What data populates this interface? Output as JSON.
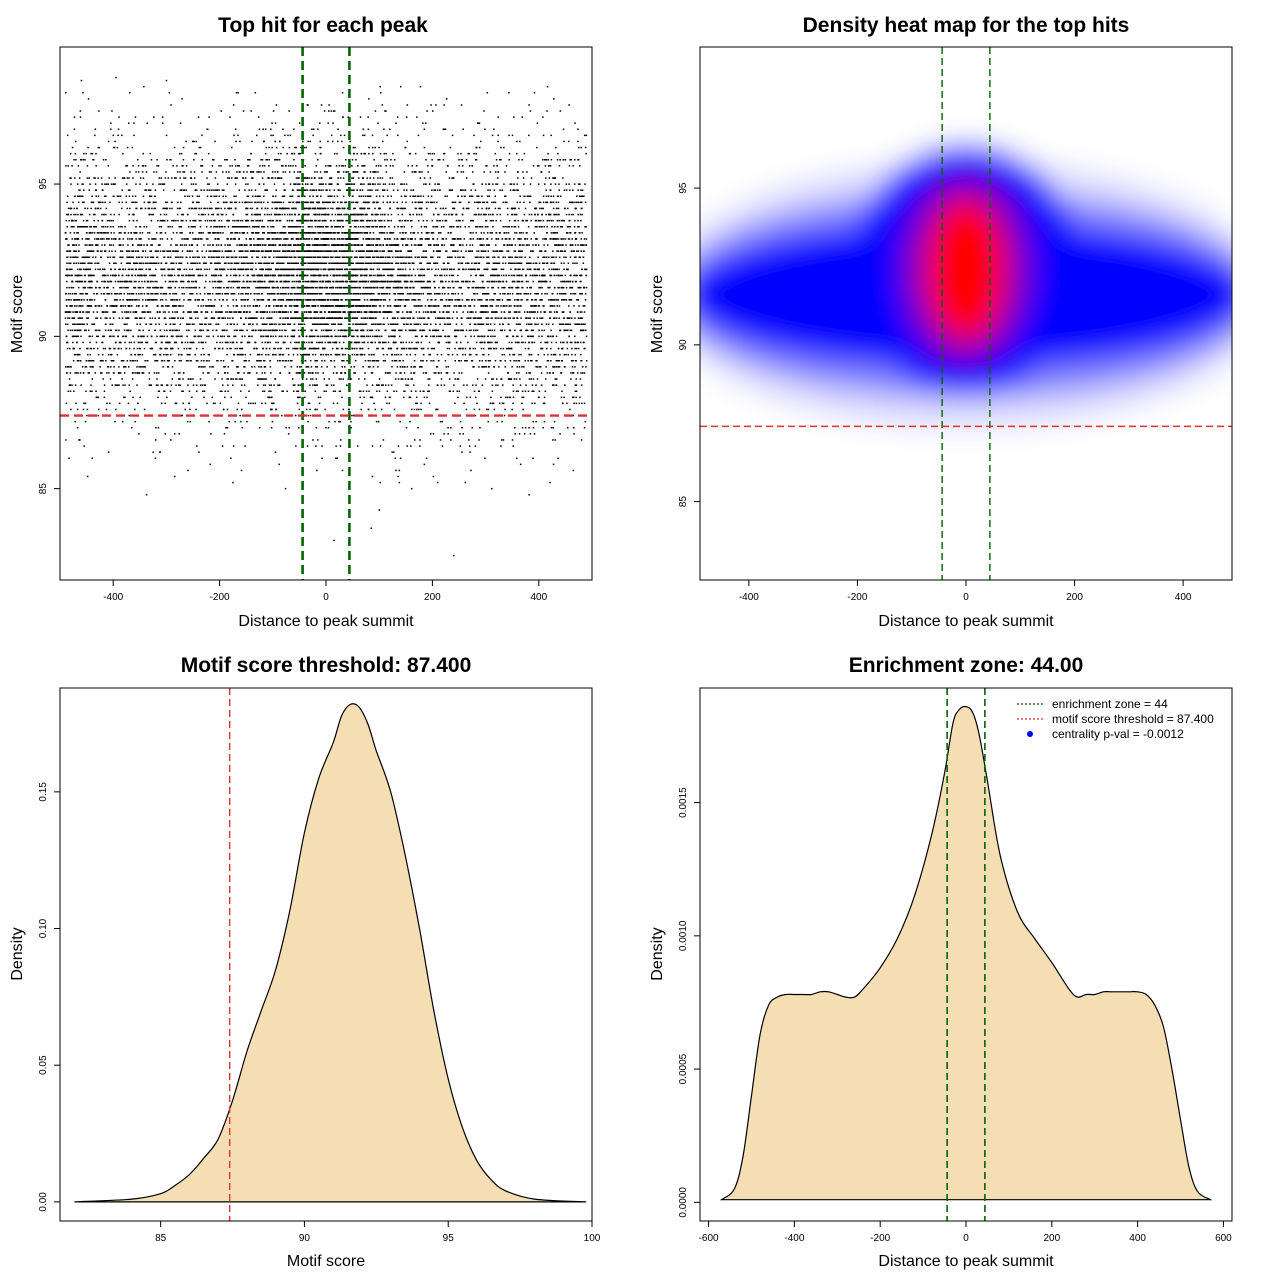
{
  "chart_data": [
    {
      "id": "scatter",
      "type": "scatter",
      "title": "Top hit for each peak",
      "xlabel": "Distance to peak summit",
      "ylabel": "Motif score",
      "xlim": [
        -500,
        500
      ],
      "ylim": [
        82,
        99.5
      ],
      "xticks": [
        -400,
        -200,
        0,
        200,
        400
      ],
      "yticks": [
        85,
        90,
        95
      ],
      "point_color": "#000000",
      "vlines": {
        "values": [
          -44,
          44
        ],
        "color": "#006400",
        "style": "dashed"
      },
      "hline": {
        "value": 87.4,
        "color": "#e03030",
        "style": "dashed"
      },
      "density_summary": {
        "x_range": [
          -490,
          490
        ],
        "y_range": [
          84.5,
          98.5
        ],
        "dense_center": {
          "x": 0,
          "y": 92.3
        },
        "outliers": [
          {
            "x": -395,
            "y": 98.5
          },
          {
            "x": -300,
            "y": 98.4
          },
          {
            "x": 15,
            "y": 83.3
          },
          {
            "x": 85,
            "y": 83.7
          },
          {
            "x": 240,
            "y": 82.8
          },
          {
            "x": 100,
            "y": 84.3
          }
        ]
      }
    },
    {
      "id": "heatmap",
      "type": "heatmap",
      "title": "Density heat map for the top hits",
      "xlabel": "Distance to peak summit",
      "ylabel": "Motif score",
      "xlim": [
        -490,
        490
      ],
      "ylim": [
        82.5,
        99.5
      ],
      "xticks": [
        -400,
        -200,
        0,
        200,
        400
      ],
      "yticks": [
        85,
        90,
        95
      ],
      "colors": {
        "low": "#ffffff",
        "mid": "#0000ff",
        "high": "#ff0000"
      },
      "peak": {
        "x": 0,
        "y": 92.4
      },
      "band_center_y": 91.6,
      "vlines": {
        "values": [
          -44,
          44
        ],
        "color": "#006400",
        "style": "dashed"
      },
      "hline": {
        "value": 87.4,
        "color": "#e03030",
        "style": "dashed"
      }
    },
    {
      "id": "score-density",
      "type": "area",
      "title": "Motif score threshold: 87.400",
      "xlabel": "Motif score",
      "ylabel": "Density",
      "xlim": [
        81.5,
        100
      ],
      "ylim": [
        -0.007,
        0.188
      ],
      "xticks": [
        85,
        90,
        95,
        100
      ],
      "yticks": [
        "0.00",
        "0.05",
        "0.10",
        "0.15"
      ],
      "fill": "#f5deb3",
      "x": [
        82,
        84,
        85,
        85.5,
        86,
        86.5,
        87,
        87.5,
        88,
        88.5,
        89,
        89.5,
        90,
        90.5,
        91,
        91.3,
        91.6,
        91.9,
        92.2,
        92.5,
        93,
        93.5,
        94,
        94.5,
        95,
        95.5,
        96,
        96.5,
        97,
        98,
        99.8
      ],
      "y": [
        0,
        0.001,
        0.003,
        0.006,
        0.01,
        0.016,
        0.023,
        0.037,
        0.055,
        0.07,
        0.085,
        0.107,
        0.135,
        0.155,
        0.168,
        0.178,
        0.182,
        0.181,
        0.175,
        0.165,
        0.15,
        0.127,
        0.1,
        0.07,
        0.045,
        0.027,
        0.015,
        0.008,
        0.004,
        0.001,
        0
      ],
      "vline": {
        "value": 87.4,
        "color": "#e03030",
        "style": "dashed"
      }
    },
    {
      "id": "distance-density",
      "type": "area",
      "title": "Enrichment zone: 44.00",
      "xlabel": "Distance to peak summit",
      "ylabel": "Density",
      "xlim": [
        -620,
        620
      ],
      "ylim": [
        -7e-05,
        0.00193
      ],
      "xticks": [
        -600,
        -400,
        -200,
        0,
        200,
        400,
        600
      ],
      "yticks": [
        "0.0000",
        "0.0005",
        "0.0010",
        "0.0015"
      ],
      "fill": "#f5deb3",
      "x": [
        -570,
        -540,
        -520,
        -500,
        -480,
        -460,
        -440,
        -420,
        -400,
        -380,
        -360,
        -340,
        -320,
        -300,
        -280,
        -260,
        -240,
        -200,
        -160,
        -120,
        -80,
        -50,
        -30,
        -15,
        0,
        15,
        30,
        50,
        80,
        120,
        160,
        200,
        240,
        260,
        280,
        300,
        320,
        340,
        360,
        380,
        400,
        420,
        440,
        460,
        480,
        500,
        520,
        540,
        570
      ],
      "y": [
        1e-05,
        5e-05,
        0.00017,
        0.0004,
        0.00063,
        0.00074,
        0.00077,
        0.00078,
        0.00078,
        0.00078,
        0.00078,
        0.00079,
        0.00079,
        0.00078,
        0.00077,
        0.00077,
        0.0008,
        0.00088,
        0.00099,
        0.00115,
        0.00138,
        0.00161,
        0.0018,
        0.00185,
        0.00186,
        0.00184,
        0.00176,
        0.00158,
        0.0013,
        0.00109,
        0.00099,
        0.0009,
        0.0008,
        0.00077,
        0.00078,
        0.00078,
        0.00079,
        0.00079,
        0.00079,
        0.00079,
        0.00079,
        0.00078,
        0.00074,
        0.00066,
        0.0005,
        0.00031,
        0.00013,
        4e-05,
        1e-05
      ],
      "vlines": {
        "values": [
          -44,
          44
        ],
        "color": "#006400",
        "style": "dashed"
      },
      "legend": {
        "position": "top-right",
        "entries": [
          {
            "label": "enrichment zone = 44",
            "color": "#006400",
            "style": "dotted-line"
          },
          {
            "label": "motif score threshold = 87.400",
            "color": "#e03030",
            "style": "dotted-line"
          },
          {
            "label": "centrality p-val = -0.0012",
            "color": "#0000ff",
            "style": "point"
          }
        ]
      }
    }
  ]
}
